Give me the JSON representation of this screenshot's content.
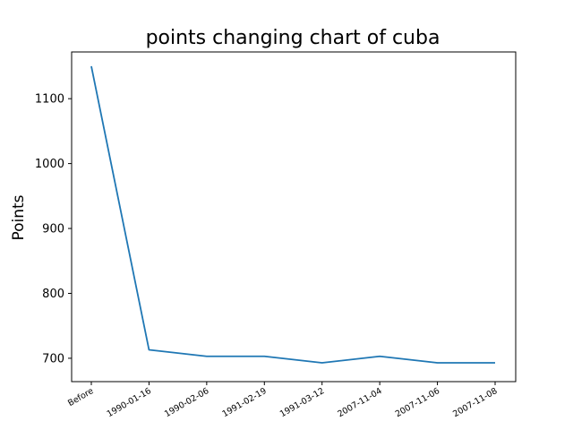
{
  "chart_data": {
    "type": "line",
    "title": "points changing chart of cuba",
    "xlabel": "",
    "ylabel": "Points",
    "categories": [
      "Before",
      "1990-01-16",
      "1990-02-06",
      "1991-02-19",
      "1991-03-12",
      "2007-11-04",
      "2007-11-06",
      "2007-11-08"
    ],
    "series": [
      {
        "values": [
          1150,
          713,
          703,
          703,
          693,
          703,
          693,
          693
        ]
      }
    ],
    "ylim": [
      664,
      1172
    ],
    "yticks": [
      700,
      800,
      900,
      1000,
      1100
    ],
    "grid": false,
    "line_color": "#1f77b4"
  }
}
